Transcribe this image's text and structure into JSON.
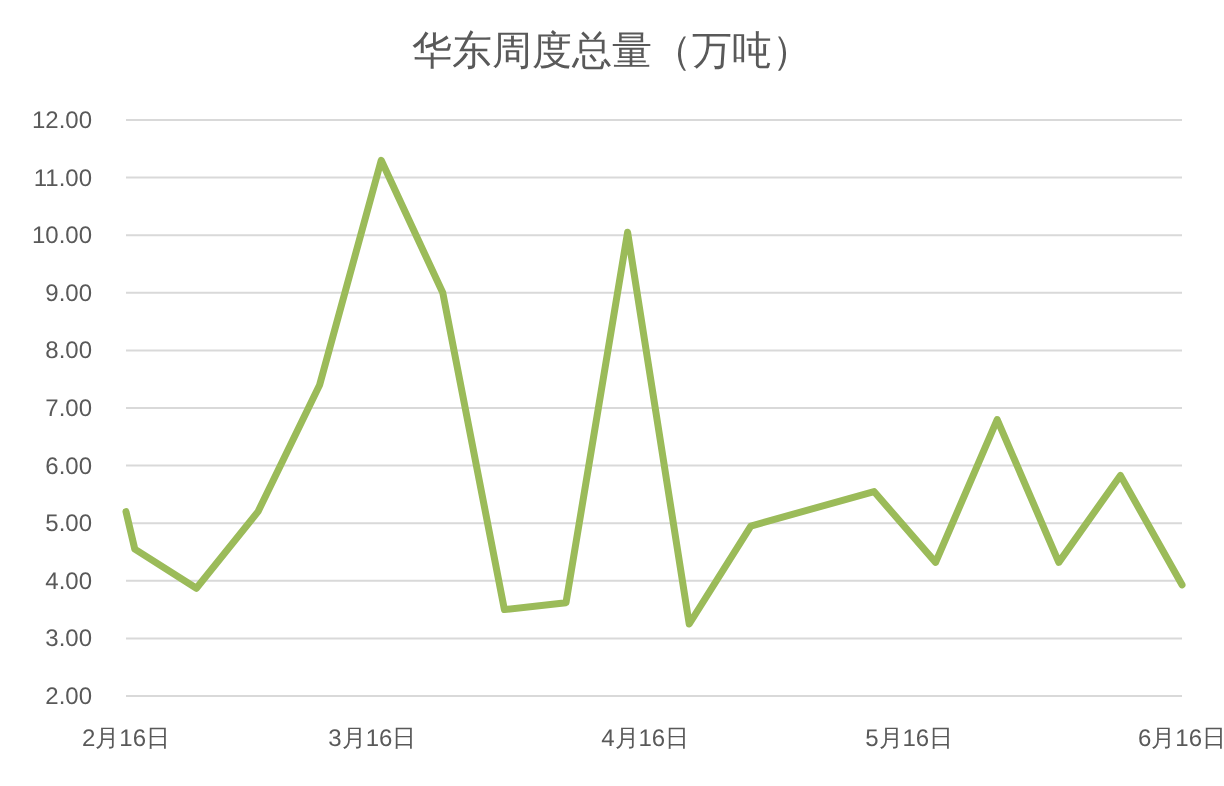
{
  "chart_data": {
    "type": "line",
    "title": "华东周度总量（万吨）",
    "x": [
      "--02-16",
      "--02-17",
      "--02-24",
      "--03-03",
      "--03-10",
      "--03-17",
      "--03-24",
      "--03-31",
      "--04-07",
      "--04-14",
      "--04-21",
      "--04-28",
      "--05-12",
      "--05-19",
      "--05-26",
      "--06-02",
      "--06-09",
      "--06-16"
    ],
    "series": [
      {
        "color": "#9bbb59",
        "values": [
          5.2,
          4.55,
          3.87,
          5.2,
          7.4,
          11.3,
          9.0,
          3.5,
          3.62,
          10.05,
          3.25,
          4.95,
          5.55,
          4.32,
          6.8,
          4.32,
          5.83,
          3.93
        ]
      }
    ],
    "xlim": [
      "--02-16",
      "--06-16"
    ],
    "xticks": [
      {
        "value": "--02-16",
        "label": "2月16日"
      },
      {
        "value": "--03-16",
        "label": "3月16日"
      },
      {
        "value": "--04-16",
        "label": "4月16日"
      },
      {
        "value": "--05-16",
        "label": "5月16日"
      },
      {
        "value": "--06-16",
        "label": "6月16日"
      }
    ],
    "ylim": [
      2,
      12
    ],
    "yticks": [
      {
        "value": 2,
        "label": "2.00"
      },
      {
        "value": 3,
        "label": "3.00"
      },
      {
        "value": 4,
        "label": "4.00"
      },
      {
        "value": 5,
        "label": "5.00"
      },
      {
        "value": 6,
        "label": "6.00"
      },
      {
        "value": 7,
        "label": "7.00"
      },
      {
        "value": 8,
        "label": "8.00"
      },
      {
        "value": 9,
        "label": "9.00"
      },
      {
        "value": 10,
        "label": "10.00"
      },
      {
        "value": 11,
        "label": "11.00"
      },
      {
        "value": 12,
        "label": "12.00"
      }
    ],
    "grid": "y",
    "marker": "none",
    "line_style": "solid"
  }
}
